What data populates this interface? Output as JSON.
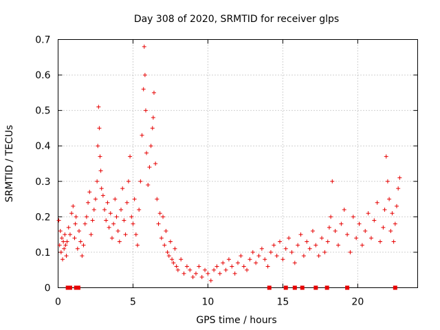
{
  "chart_data": {
    "type": "scatter",
    "title": "Day 308 of 2020, SRMTID for receiver glps",
    "xlabel": "GPS time / hours",
    "ylabel": "SRMTID / TECUs",
    "xlim": [
      0,
      24
    ],
    "ylim": [
      0,
      0.7
    ],
    "xticks": [
      0,
      5,
      10,
      15,
      20
    ],
    "xtick_labels": [
      "0",
      "5",
      "10",
      "15",
      "20"
    ],
    "yticks": [
      0,
      0.1,
      0.2,
      0.3,
      0.4,
      0.5,
      0.6,
      0.7
    ],
    "ytick_labels": [
      "0",
      "0.1",
      "0.2",
      "0.3",
      "0.4",
      "0.5",
      "0.6",
      "0.7"
    ],
    "grid": true,
    "marker": "+",
    "color": "#e60000",
    "series": [
      {
        "name": "SRMTID",
        "x": [
          0.05,
          0.1,
          0.15,
          0.2,
          0.25,
          0.3,
          0.35,
          0.4,
          0.45,
          0.5,
          0.55,
          0.6,
          0.7,
          0.8,
          0.9,
          1.0,
          1.1,
          1.15,
          1.2,
          1.3,
          1.4,
          1.5,
          1.6,
          1.7,
          1.8,
          1.9,
          2.0,
          2.1,
          2.2,
          2.3,
          2.4,
          2.5,
          2.6,
          2.65,
          2.7,
          2.75,
          2.8,
          2.85,
          2.9,
          3.0,
          3.1,
          3.2,
          3.3,
          3.4,
          3.5,
          3.6,
          3.7,
          3.8,
          3.9,
          4.0,
          4.1,
          4.2,
          4.3,
          4.4,
          4.5,
          4.6,
          4.7,
          4.8,
          4.9,
          5.0,
          5.1,
          5.2,
          5.3,
          5.4,
          5.5,
          5.6,
          5.7,
          5.75,
          5.8,
          5.85,
          5.9,
          6.0,
          6.1,
          6.2,
          6.3,
          6.35,
          6.4,
          6.5,
          6.6,
          6.7,
          6.8,
          6.9,
          7.0,
          7.1,
          7.2,
          7.3,
          7.4,
          7.5,
          7.6,
          7.7,
          7.8,
          7.9,
          8.0,
          8.2,
          8.4,
          8.6,
          8.8,
          9.0,
          9.2,
          9.4,
          9.6,
          9.8,
          10.0,
          10.2,
          10.4,
          10.6,
          10.8,
          11.0,
          11.2,
          11.4,
          11.6,
          11.8,
          12.0,
          12.2,
          12.4,
          12.6,
          12.8,
          13.0,
          13.2,
          13.4,
          13.6,
          13.8,
          14.0,
          14.2,
          14.4,
          14.6,
          14.8,
          15.0,
          15.2,
          15.4,
          15.6,
          15.8,
          16.0,
          16.2,
          16.4,
          16.6,
          16.8,
          17.0,
          17.2,
          17.4,
          17.6,
          17.8,
          18.0,
          18.1,
          18.2,
          18.3,
          18.5,
          18.7,
          18.9,
          19.1,
          19.3,
          19.5,
          19.7,
          19.9,
          20.1,
          20.3,
          20.5,
          20.7,
          20.9,
          21.1,
          21.3,
          21.5,
          21.7,
          21.8,
          21.9,
          22.0,
          22.1,
          22.2,
          22.3,
          22.4,
          22.5,
          22.6,
          22.7,
          22.8
        ],
        "y": [
          0.19,
          0.12,
          0.16,
          0.1,
          0.14,
          0.08,
          0.13,
          0.11,
          0.15,
          0.12,
          0.09,
          0.13,
          0.17,
          0.15,
          0.21,
          0.23,
          0.14,
          0.18,
          0.2,
          0.11,
          0.16,
          0.13,
          0.09,
          0.12,
          0.18,
          0.2,
          0.24,
          0.27,
          0.15,
          0.19,
          0.22,
          0.25,
          0.3,
          0.4,
          0.51,
          0.45,
          0.37,
          0.33,
          0.28,
          0.26,
          0.22,
          0.19,
          0.24,
          0.17,
          0.21,
          0.14,
          0.18,
          0.25,
          0.2,
          0.16,
          0.13,
          0.22,
          0.28,
          0.19,
          0.15,
          0.24,
          0.3,
          0.37,
          0.2,
          0.18,
          0.25,
          0.15,
          0.12,
          0.22,
          0.3,
          0.43,
          0.56,
          0.68,
          0.6,
          0.5,
          0.38,
          0.29,
          0.34,
          0.4,
          0.45,
          0.48,
          0.55,
          0.35,
          0.25,
          0.18,
          0.21,
          0.14,
          0.2,
          0.12,
          0.16,
          0.1,
          0.09,
          0.13,
          0.08,
          0.07,
          0.11,
          0.06,
          0.05,
          0.08,
          0.04,
          0.06,
          0.05,
          0.03,
          0.04,
          0.06,
          0.03,
          0.05,
          0.04,
          0.02,
          0.05,
          0.06,
          0.04,
          0.07,
          0.05,
          0.08,
          0.06,
          0.04,
          0.07,
          0.09,
          0.06,
          0.05,
          0.08,
          0.1,
          0.07,
          0.09,
          0.11,
          0.08,
          0.06,
          0.1,
          0.12,
          0.09,
          0.13,
          0.08,
          0.11,
          0.14,
          0.1,
          0.07,
          0.12,
          0.15,
          0.09,
          0.13,
          0.11,
          0.16,
          0.12,
          0.09,
          0.14,
          0.1,
          0.13,
          0.17,
          0.2,
          0.3,
          0.16,
          0.12,
          0.18,
          0.22,
          0.15,
          0.1,
          0.2,
          0.14,
          0.18,
          0.12,
          0.16,
          0.21,
          0.14,
          0.19,
          0.24,
          0.13,
          0.17,
          0.22,
          0.37,
          0.3,
          0.25,
          0.16,
          0.21,
          0.13,
          0.18,
          0.23,
          0.28,
          0.31
        ]
      }
    ],
    "data_gaps_marked_at_zero": [
      0.65,
      0.8,
      1.2,
      1.35,
      14.1,
      15.2,
      15.8,
      16.3,
      17.2,
      17.95,
      19.3,
      22.5
    ]
  }
}
